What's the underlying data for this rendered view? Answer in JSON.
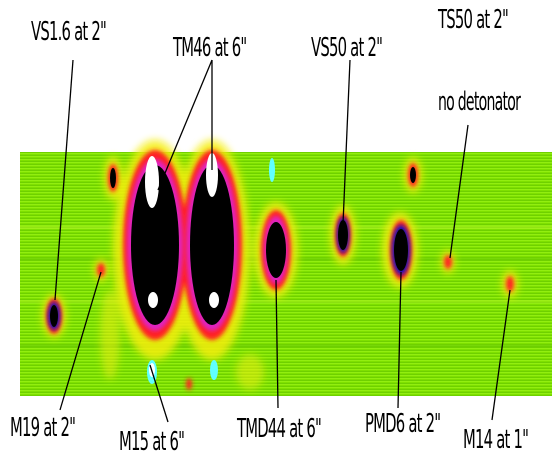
{
  "figure": {
    "labels": {
      "vs16": "VS1.6 at 2\"",
      "tm46": "TM46 at 6\"",
      "vs50": "VS50 at 2\"",
      "ts50_line1": "TS50 at 2\"",
      "ts50_line2": "no detonator",
      "m19": "M19 at 2\"",
      "m15": "M15 at 6\"",
      "tmd44": "TMD44 at 6\"",
      "pmd6": "PMD6 at 2\"",
      "m14": "M14 at 1\""
    },
    "colors": {
      "background_green": "#7ee000",
      "halo_yellow": "#f5ee10",
      "ring_red": "#ff2020",
      "ring_magenta": "#e020c0",
      "ring_blue": "#1010c0",
      "core_black": "#000000",
      "highlight_white": "#ffffff",
      "highlight_cyan": "#60ffff"
    }
  }
}
